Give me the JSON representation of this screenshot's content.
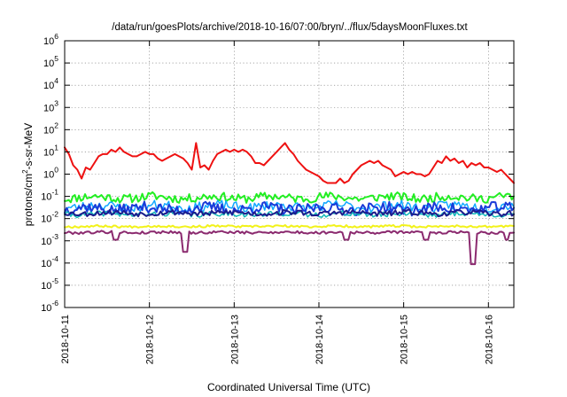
{
  "chart_data": {
    "type": "line",
    "title": "/data/run/goesPlots/archive/2018-10-16/07:00/bryn/../flux/5daysMoonFluxes.txt",
    "xlabel": "Coordinated Universal Time (UTC)",
    "ylabel": "protons/cm²-s-sr-MeV",
    "ylabel_parts": {
      "base": "protons/cm",
      "sup": "2",
      "rest": "-s-sr-MeV"
    },
    "y_scale": "log",
    "ylim_exponent": [
      -6,
      6
    ],
    "y_ticks": [
      {
        "base": "10",
        "exp": "-6"
      },
      {
        "base": "10",
        "exp": "-5"
      },
      {
        "base": "10",
        "exp": "-4"
      },
      {
        "base": "10",
        "exp": "-3"
      },
      {
        "base": "10",
        "exp": "-2"
      },
      {
        "base": "10",
        "exp": "-1"
      },
      {
        "base": "10",
        "exp": "0"
      },
      {
        "base": "10",
        "exp": "1"
      },
      {
        "base": "10",
        "exp": "2"
      },
      {
        "base": "10",
        "exp": "3"
      },
      {
        "base": "10",
        "exp": "4"
      },
      {
        "base": "10",
        "exp": "5"
      },
      {
        "base": "10",
        "exp": "6"
      }
    ],
    "x_ticks": [
      "2018-10-11",
      "2018-10-12",
      "2018-10-13",
      "2018-10-14",
      "2018-10-15",
      "2018-10-16"
    ],
    "xlim_days": [
      0,
      5.3
    ],
    "grid": true,
    "legend": "none",
    "series": [
      {
        "color": "#ee1111",
        "width": 2,
        "x": [
          0,
          0.05,
          0.1,
          0.15,
          0.2,
          0.25,
          0.3,
          0.35,
          0.4,
          0.45,
          0.5,
          0.55,
          0.6,
          0.65,
          0.7,
          0.75,
          0.8,
          0.85,
          0.9,
          0.95,
          1.0,
          1.05,
          1.1,
          1.15,
          1.2,
          1.25,
          1.3,
          1.35,
          1.4,
          1.45,
          1.5,
          1.55,
          1.6,
          1.65,
          1.7,
          1.75,
          1.8,
          1.85,
          1.9,
          1.95,
          2.0,
          2.05,
          2.1,
          2.15,
          2.2,
          2.25,
          2.3,
          2.35,
          2.4,
          2.45,
          2.5,
          2.55,
          2.6,
          2.65,
          2.7,
          2.75,
          2.8,
          2.85,
          2.9,
          2.95,
          3.0,
          3.05,
          3.1,
          3.15,
          3.2,
          3.25,
          3.3,
          3.35,
          3.4,
          3.45,
          3.5,
          3.55,
          3.6,
          3.65,
          3.7,
          3.75,
          3.8,
          3.85,
          3.9,
          3.95,
          4.0,
          4.05,
          4.1,
          4.15,
          4.2,
          4.25,
          4.3,
          4.35,
          4.4,
          4.45,
          4.5,
          4.55,
          4.6,
          4.65,
          4.7,
          4.75,
          4.8,
          4.85,
          4.9,
          4.95,
          5.0,
          5.05,
          5.1,
          5.15,
          5.2,
          5.25,
          5.3
        ],
        "logy": [
          1.2,
          0.9,
          0.4,
          0.2,
          -0.2,
          0.3,
          0.2,
          0.5,
          0.8,
          0.9,
          0.9,
          1.1,
          1.0,
          1.2,
          1.0,
          0.9,
          0.8,
          0.8,
          0.9,
          1.0,
          0.9,
          0.9,
          0.7,
          0.6,
          0.7,
          0.8,
          0.9,
          0.8,
          0.7,
          0.5,
          0.2,
          1.4,
          0.3,
          0.4,
          0.2,
          0.6,
          0.9,
          1.0,
          1.1,
          1.0,
          1.1,
          1.0,
          1.1,
          1.0,
          0.8,
          0.5,
          0.5,
          0.4,
          0.6,
          0.8,
          1.0,
          1.2,
          1.4,
          1.1,
          0.9,
          0.6,
          0.4,
          0.2,
          0.1,
          0.0,
          -0.1,
          -0.3,
          -0.4,
          -0.4,
          -0.4,
          -0.2,
          -0.4,
          -0.3,
          0.0,
          0.2,
          0.4,
          0.5,
          0.6,
          0.5,
          0.6,
          0.4,
          0.3,
          0.2,
          -0.1,
          0.0,
          0.1,
          0.0,
          0.1,
          0.0,
          0.0,
          -0.1,
          0.0,
          0.3,
          0.6,
          0.5,
          0.8,
          0.6,
          0.7,
          0.5,
          0.6,
          0.3,
          0.5,
          0.4,
          0.5,
          0.3,
          0.3,
          0.2,
          0.1,
          0.2,
          0.0,
          -0.2,
          -0.4
        ]
      },
      {
        "color": "#22ee22",
        "width": 2,
        "logy_mean": -1.05,
        "noise": 0.2,
        "points": 220,
        "seed": 11
      },
      {
        "color": "#11a8ff",
        "width": 1.5,
        "logy_mean": -1.45,
        "noise": 0.22,
        "points": 220,
        "seed": 23
      },
      {
        "color": "#1a3ad8",
        "width": 2,
        "logy_mean": -1.55,
        "noise": 0.25,
        "points": 220,
        "seed": 37
      },
      {
        "color": "#11b8b8",
        "width": 1.5,
        "logy_mean": -1.8,
        "noise": 0.12,
        "points": 220,
        "seed": 41
      },
      {
        "color": "#1c1c8c",
        "width": 2,
        "logy_mean": -1.75,
        "noise": 0.12,
        "points": 220,
        "seed": 53
      },
      {
        "color": "#f2f21a",
        "width": 2,
        "logy_mean": -2.35,
        "noise": 0.05,
        "points": 220,
        "seed": 67
      },
      {
        "color": "#8b2a6f",
        "width": 2,
        "logy_mean": -2.62,
        "noise": 0.06,
        "points": 220,
        "seed": 79,
        "dips": [
          [
            0.6,
            -2.95
          ],
          [
            1.42,
            -3.5
          ],
          [
            3.32,
            -2.95
          ],
          [
            4.26,
            -2.95
          ],
          [
            4.82,
            -4.05
          ],
          [
            5.22,
            -2.95
          ]
        ]
      }
    ]
  }
}
